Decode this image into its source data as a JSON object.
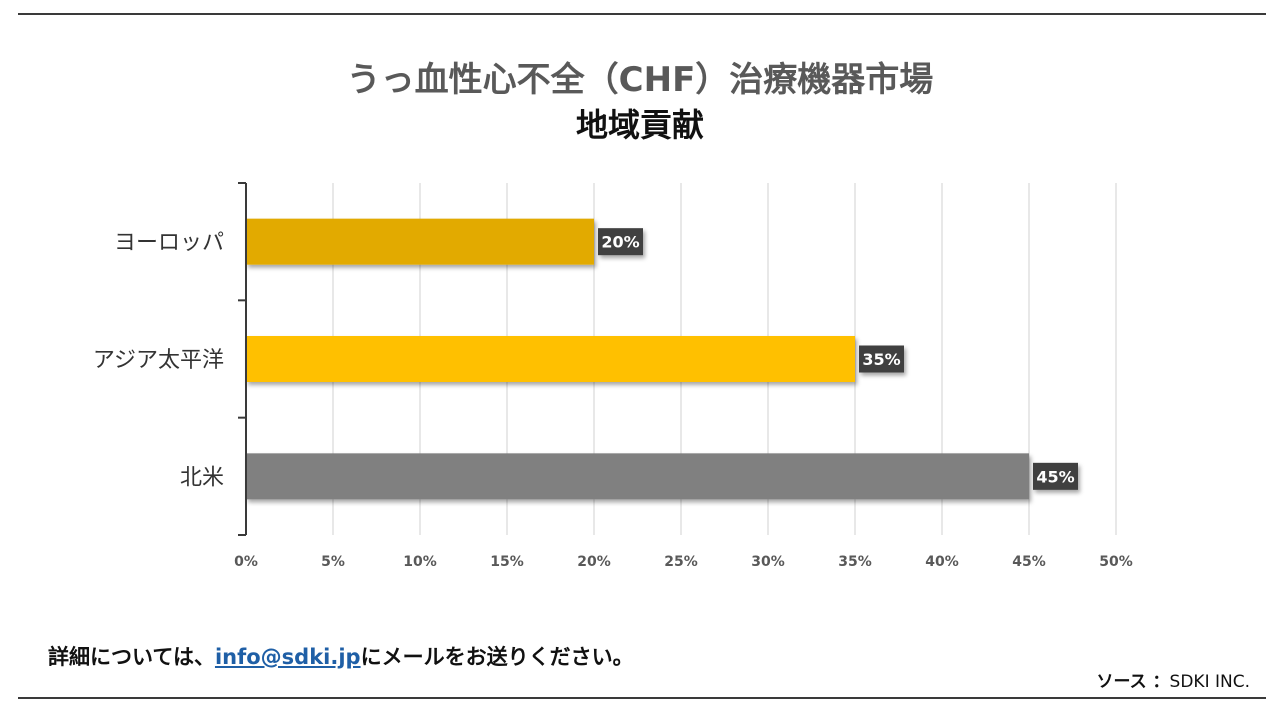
{
  "title": "うっ血性心不全（CHF）治療機器市場",
  "subtitle": "地域貢献",
  "chart_data": {
    "type": "bar",
    "orientation": "horizontal",
    "categories": [
      "ヨーロッパ",
      "アジア太平洋",
      "北米"
    ],
    "values": [
      20,
      35,
      45
    ],
    "data_labels": [
      "20%",
      "35%",
      "45%"
    ],
    "colors": [
      "#e2aa00",
      "#ffc000",
      "#808080"
    ],
    "xlim": [
      0,
      50
    ],
    "x_ticks": [
      "0%",
      "5%",
      "10%",
      "15%",
      "20%",
      "25%",
      "30%",
      "35%",
      "40%",
      "45%",
      "50%"
    ],
    "grid": true,
    "xlabel": "",
    "ylabel": ""
  },
  "footer": {
    "prefix": "詳細については、",
    "email": "info@sdki.jp",
    "suffix": "にメールをお送りください。"
  },
  "source": {
    "label": "ソース ：",
    "value": "SDKI INC."
  }
}
